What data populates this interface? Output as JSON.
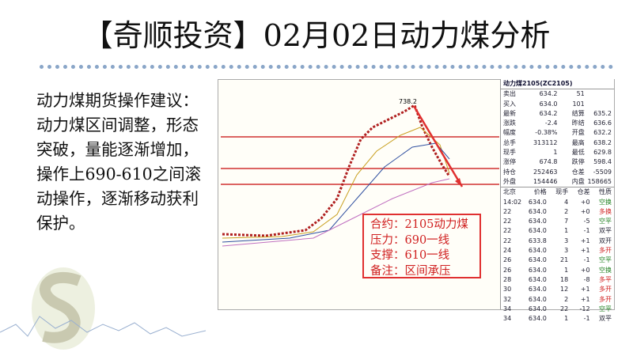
{
  "header": {
    "title": "【奇顺投资】02月02日动力煤分析"
  },
  "body": {
    "text": "动力煤期货操作建议：动力煤区间调整，形态突破，量能逐渐增加，操作上690-610之间滚动操作，逐渐移动获利保护。"
  },
  "chart": {
    "peak_label": "738.2",
    "box": [
      "合约：2105动力煤",
      "压力：690一线",
      "支撑：610一线",
      "备注：区间承压"
    ]
  },
  "quote_panel": {
    "title": "动力煤2105(ZC2105)",
    "summary_rows": [
      [
        "卖出",
        "634.2",
        "51",
        ""
      ],
      [
        "买入",
        "634.0",
        "101",
        ""
      ],
      [
        "最新",
        "634.2",
        "结算",
        "635.2"
      ],
      [
        "涨跌",
        "-2.4",
        "昨结",
        "636.6"
      ],
      [
        "幅度",
        "-0.38%",
        "开盘",
        "632.2"
      ],
      [
        "总手",
        "313112",
        "最高",
        "638.2"
      ],
      [
        "现手",
        "1",
        "最低",
        "629.8"
      ],
      [
        "涨停",
        "674.8",
        "跌停",
        "598.4"
      ],
      [
        "持仓",
        "252463",
        "仓差",
        "-5509"
      ],
      [
        "外盘",
        "154446",
        "内盘",
        "158665"
      ]
    ],
    "tick_header": [
      "北京",
      "价格",
      "现手",
      "仓差",
      "性质"
    ],
    "ticks": [
      [
        "14:02",
        "634.0",
        "4",
        "+0",
        "空换"
      ],
      [
        "22",
        "634.0",
        "2",
        "+0",
        "多换"
      ],
      [
        "22",
        "634.0",
        "7",
        "-5",
        "空平"
      ],
      [
        "22",
        "634.0",
        "1",
        "-1",
        "双平"
      ],
      [
        "22",
        "633.8",
        "3",
        "+1",
        "双开"
      ],
      [
        "24",
        "634.0",
        "3",
        "+1",
        "多开"
      ],
      [
        "26",
        "634.0",
        "21",
        "-1",
        "空平"
      ],
      [
        "26",
        "634.0",
        "1",
        "+0",
        "空换"
      ],
      [
        "28",
        "634.0",
        "18",
        "-8",
        "多平"
      ],
      [
        "30",
        "634.0",
        "12",
        "+1",
        "多开"
      ],
      [
        "32",
        "634.0",
        "2",
        "+1",
        "多开"
      ],
      [
        "34",
        "634.0",
        "22",
        "-12",
        "空平"
      ],
      [
        "34",
        "634.0",
        "1",
        "-1",
        "双平"
      ]
    ]
  }
}
